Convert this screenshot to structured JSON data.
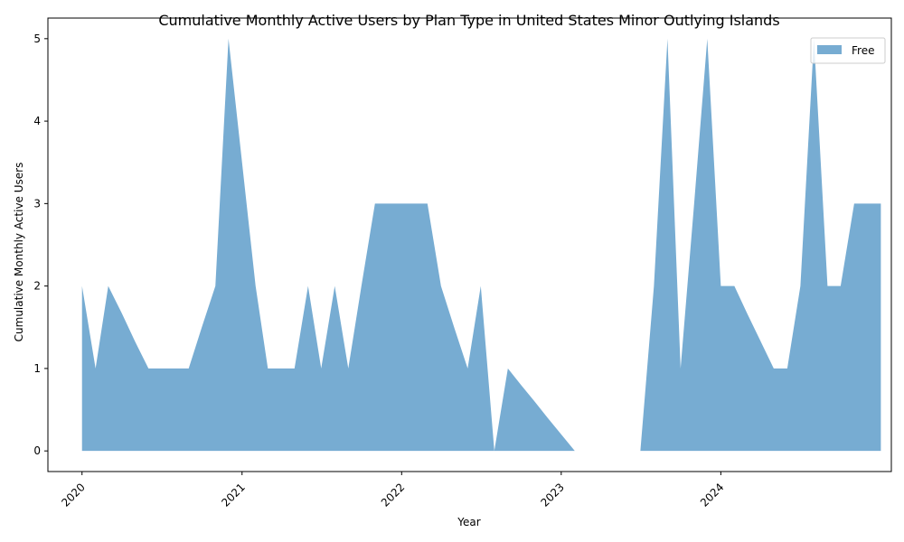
{
  "chart_data": {
    "type": "area",
    "title": "Cumulative Monthly Active Users by Plan Type in United States Minor Outlying Islands",
    "xlabel": "Year",
    "ylabel": "Cumulative Monthly Active Users",
    "ylim": [
      -0.25,
      5.25
    ],
    "xlim": [
      "2019-10-15",
      "2025-01-25"
    ],
    "y_ticks": [
      0,
      1,
      2,
      3,
      4,
      5
    ],
    "x_ticks": [
      {
        "date": "2020-01-01",
        "label": "2020"
      },
      {
        "date": "2021-01-01",
        "label": "2021"
      },
      {
        "date": "2022-01-01",
        "label": "2022"
      },
      {
        "date": "2023-01-01",
        "label": "2023"
      },
      {
        "date": "2024-01-01",
        "label": "2024"
      }
    ],
    "grid": false,
    "legend_position": "top-right",
    "color": "#77acd2",
    "series": [
      {
        "name": "Free",
        "points": [
          [
            "2020-01-01",
            2
          ],
          [
            "2020-02-01",
            1
          ],
          [
            "2020-03-01",
            2
          ],
          [
            "2020-04-01",
            1.67
          ],
          [
            "2020-05-01",
            1.33
          ],
          [
            "2020-06-01",
            1
          ],
          [
            "2020-07-01",
            1
          ],
          [
            "2020-08-01",
            1
          ],
          [
            "2020-09-01",
            1
          ],
          [
            "2020-10-01",
            1.5
          ],
          [
            "2020-11-01",
            2
          ],
          [
            "2020-12-01",
            5
          ],
          [
            "2021-01-01",
            3.5
          ],
          [
            "2021-02-01",
            2
          ],
          [
            "2021-03-01",
            1
          ],
          [
            "2021-04-01",
            1
          ],
          [
            "2021-05-01",
            1
          ],
          [
            "2021-06-01",
            2
          ],
          [
            "2021-07-01",
            1
          ],
          [
            "2021-08-01",
            2
          ],
          [
            "2021-09-01",
            1
          ],
          [
            "2021-10-01",
            2
          ],
          [
            "2021-11-01",
            3
          ],
          [
            "2021-12-01",
            3
          ],
          [
            "2022-01-01",
            3
          ],
          [
            "2022-02-01",
            3
          ],
          [
            "2022-03-01",
            3
          ],
          [
            "2022-04-01",
            2
          ],
          [
            "2022-05-01",
            1.5
          ],
          [
            "2022-06-01",
            1
          ],
          [
            "2022-07-01",
            2
          ],
          [
            "2022-08-01",
            0
          ],
          [
            "2022-09-01",
            1
          ],
          [
            "2022-10-01",
            0.8
          ],
          [
            "2022-11-01",
            0.6
          ],
          [
            "2022-12-01",
            0.4
          ],
          [
            "2023-01-01",
            0.2
          ],
          [
            "2023-02-01",
            0
          ],
          [
            "2023-03-01",
            0
          ],
          [
            "2023-04-01",
            0
          ],
          [
            "2023-05-01",
            0
          ],
          [
            "2023-06-01",
            0
          ],
          [
            "2023-07-01",
            0
          ],
          [
            "2023-08-01",
            2
          ],
          [
            "2023-09-01",
            5
          ],
          [
            "2023-10-01",
            1
          ],
          [
            "2023-11-01",
            3
          ],
          [
            "2023-12-01",
            5
          ],
          [
            "2024-01-01",
            2
          ],
          [
            "2024-02-01",
            2
          ],
          [
            "2024-03-01",
            1.67
          ],
          [
            "2024-04-01",
            1.33
          ],
          [
            "2024-05-01",
            1
          ],
          [
            "2024-06-01",
            1
          ],
          [
            "2024-07-01",
            2
          ],
          [
            "2024-08-01",
            5
          ],
          [
            "2024-09-01",
            2
          ],
          [
            "2024-10-01",
            2
          ],
          [
            "2024-11-01",
            3
          ],
          [
            "2024-12-01",
            3
          ],
          [
            "2025-01-01",
            3
          ]
        ]
      }
    ]
  }
}
